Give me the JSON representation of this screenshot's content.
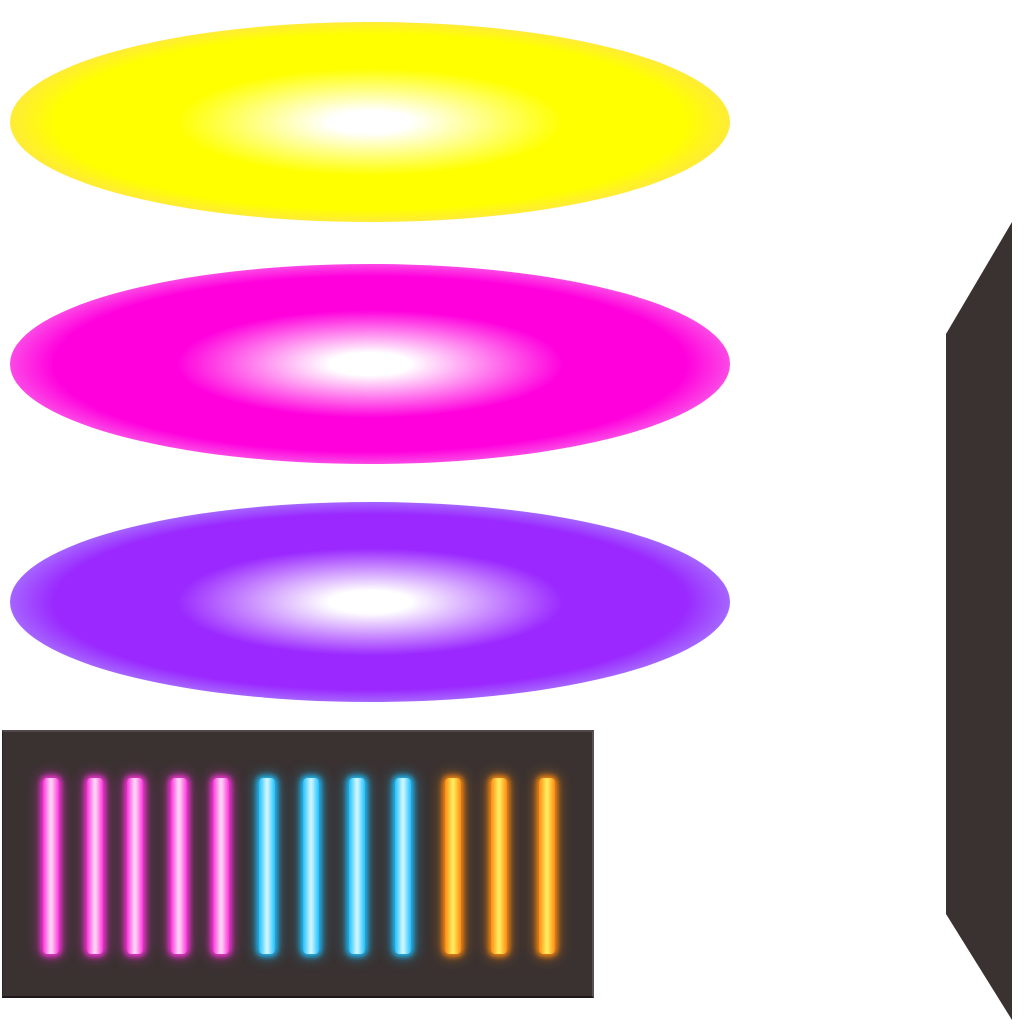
{
  "glows": [
    {
      "name": "yellow",
      "core": "#ffffff",
      "ring": "#ffff00",
      "halo": "#ffd27f"
    },
    {
      "name": "magenta",
      "core": "#ffffff",
      "ring": "#ff00dd",
      "halo": "#f8a8f0"
    },
    {
      "name": "purple",
      "core": "#ffffff",
      "ring": "#9a28ff",
      "halo": "#b4b4ff"
    }
  ],
  "panel": {
    "color": "#3a3231"
  },
  "tubes": [
    {
      "core": "#ffd0f4",
      "glow": "#ff33dd"
    },
    {
      "core": "#ffd0f4",
      "glow": "#ff33dd"
    },
    {
      "core": "#ffd0f4",
      "glow": "#ff33dd"
    },
    {
      "core": "#ffd0f4",
      "glow": "#ff33dd"
    },
    {
      "core": "#ffd0f4",
      "glow": "#ff33dd"
    },
    {
      "core": "#c8f4ff",
      "glow": "#1ec0ff"
    },
    {
      "core": "#c8f4ff",
      "glow": "#1ec0ff"
    },
    {
      "core": "#c8f4ff",
      "glow": "#1ec0ff"
    },
    {
      "core": "#c8f4ff",
      "glow": "#1ec0ff"
    },
    {
      "core": "#ffe85a",
      "glow": "#ff8a10"
    },
    {
      "core": "#ffe85a",
      "glow": "#ff8a10"
    },
    {
      "core": "#ffe85a",
      "glow": "#ff8a10"
    }
  ],
  "side_panel": {
    "color": "#3a3231"
  }
}
